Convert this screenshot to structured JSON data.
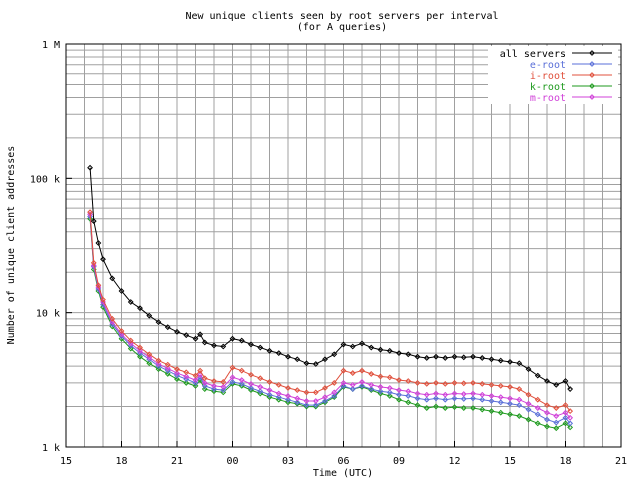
{
  "chart_data": {
    "type": "line",
    "title": "New unique clients seen by root servers per interval",
    "subtitle": "(for A queries)",
    "xlabel": "Time (UTC)",
    "ylabel": "Number of unique client addresses",
    "y_scale": "log",
    "ylim": [
      1000,
      1000000
    ],
    "xlim": [
      "15:00",
      "21:00 (next day)"
    ],
    "x_ticks": [
      "15",
      "18",
      "21",
      "00",
      "03",
      "06",
      "09",
      "12",
      "15",
      "18",
      "21"
    ],
    "y_ticks": [
      "1 k",
      "10 k",
      "100 k",
      "1 M"
    ],
    "grid": true,
    "legend_position": "top-right",
    "x_hours": [
      16.3,
      16.5,
      16.75,
      17.0,
      17.5,
      18.0,
      18.5,
      19.0,
      19.5,
      20.0,
      20.5,
      21.0,
      21.5,
      22.0,
      22.25,
      22.5,
      23.0,
      23.5,
      24.0,
      24.5,
      25.0,
      25.5,
      26.0,
      26.5,
      27.0,
      27.5,
      28.0,
      28.5,
      29.0,
      29.5,
      30.0,
      30.5,
      31.0,
      31.5,
      32.0,
      32.5,
      33.0,
      33.5,
      34.0,
      34.5,
      35.0,
      35.5,
      36.0,
      36.5,
      37.0,
      37.5,
      38.0,
      38.5,
      39.0,
      39.5,
      40.0,
      40.5,
      41.0,
      41.5,
      42.0,
      42.25
    ],
    "series": [
      {
        "name": "all servers",
        "color": "#000000",
        "values": [
          120000,
          48000,
          33000,
          25000,
          18000,
          14500,
          12000,
          10800,
          9500,
          8500,
          7800,
          7200,
          6800,
          6400,
          6900,
          6000,
          5700,
          5600,
          6400,
          6200,
          5800,
          5500,
          5200,
          5000,
          4700,
          4500,
          4200,
          4150,
          4500,
          4900,
          5800,
          5600,
          5900,
          5500,
          5300,
          5200,
          5000,
          4900,
          4700,
          4600,
          4700,
          4600,
          4700,
          4650,
          4700,
          4600,
          4500,
          4400,
          4300,
          4200,
          3800,
          3400,
          3100,
          2900,
          3100,
          2700
        ]
      },
      {
        "name": "e-root",
        "color": "#5a6fd8",
        "values": [
          52000,
          22000,
          15000,
          11500,
          8200,
          6700,
          5700,
          5000,
          4500,
          4000,
          3700,
          3400,
          3200,
          3000,
          3300,
          2850,
          2700,
          2650,
          3050,
          2950,
          2750,
          2600,
          2450,
          2350,
          2250,
          2150,
          2050,
          2050,
          2200,
          2400,
          2850,
          2700,
          2850,
          2700,
          2600,
          2550,
          2450,
          2400,
          2300,
          2250,
          2300,
          2250,
          2300,
          2280,
          2300,
          2250,
          2200,
          2150,
          2100,
          2050,
          1900,
          1750,
          1600,
          1520,
          1650,
          1500
        ]
      },
      {
        "name": "i-root",
        "color": "#e0503c",
        "values": [
          56000,
          23500,
          16000,
          12500,
          9000,
          7300,
          6200,
          5500,
          4900,
          4400,
          4100,
          3800,
          3600,
          3400,
          3700,
          3250,
          3100,
          3050,
          3900,
          3700,
          3450,
          3250,
          3050,
          2900,
          2750,
          2650,
          2550,
          2550,
          2750,
          3000,
          3700,
          3550,
          3700,
          3500,
          3350,
          3300,
          3150,
          3100,
          3000,
          2950,
          3000,
          2950,
          3000,
          2980,
          3000,
          2950,
          2900,
          2850,
          2800,
          2700,
          2450,
          2250,
          2050,
          1950,
          2050,
          1850
        ]
      },
      {
        "name": "k-root",
        "color": "#1e9a1e",
        "values": [
          50000,
          21000,
          14500,
          11000,
          7900,
          6400,
          5400,
          4700,
          4200,
          3800,
          3500,
          3200,
          3000,
          2850,
          3150,
          2700,
          2600,
          2550,
          2950,
          2850,
          2650,
          2500,
          2350,
          2250,
          2150,
          2100,
          2000,
          2000,
          2150,
          2350,
          2800,
          2700,
          2800,
          2650,
          2500,
          2400,
          2250,
          2150,
          2050,
          1950,
          2000,
          1950,
          1980,
          1950,
          1950,
          1900,
          1850,
          1800,
          1750,
          1700,
          1600,
          1500,
          1420,
          1380,
          1500,
          1400
        ]
      },
      {
        "name": "m-root",
        "color": "#d040d8",
        "values": [
          54000,
          22500,
          15500,
          12000,
          8500,
          6900,
          5900,
          5200,
          4650,
          4150,
          3850,
          3550,
          3350,
          3150,
          3450,
          3000,
          2850,
          2800,
          3300,
          3150,
          2950,
          2800,
          2650,
          2500,
          2400,
          2300,
          2200,
          2200,
          2350,
          2550,
          3000,
          2900,
          3050,
          2900,
          2800,
          2750,
          2650,
          2600,
          2500,
          2450,
          2500,
          2450,
          2500,
          2480,
          2500,
          2450,
          2400,
          2350,
          2300,
          2250,
          2100,
          1950,
          1800,
          1700,
          1800,
          1650
        ]
      }
    ]
  }
}
